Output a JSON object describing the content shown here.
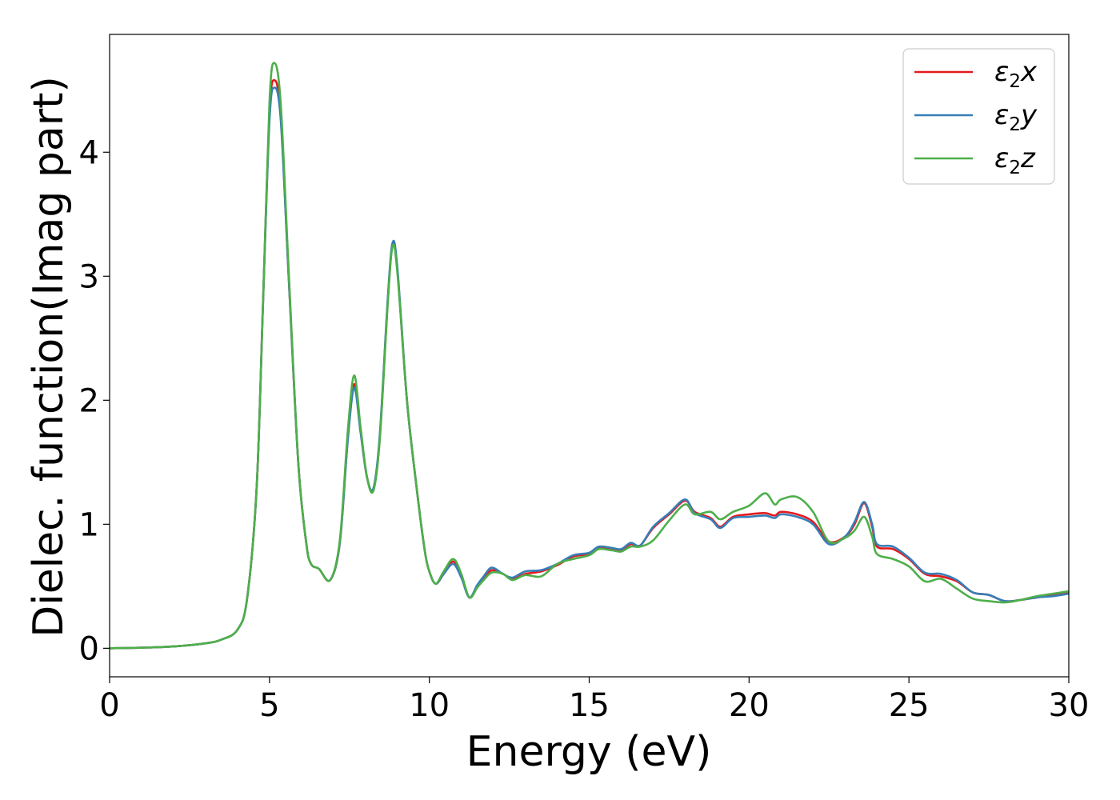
{
  "chart_data": {
    "type": "line",
    "xlabel": "Energy (eV)",
    "ylabel": "Dielec. function(Imag part)",
    "xlim": [
      0,
      30
    ],
    "ylim": [
      -0.23,
      4.95
    ],
    "xticks": [
      0,
      5,
      10,
      15,
      20,
      25,
      30
    ],
    "yticks": [
      0,
      1,
      2,
      3,
      4
    ],
    "grid": false,
    "legend_position": "top-right",
    "series": [
      {
        "name": "ε2x",
        "legend": {
          "base": "ε",
          "sub": "2",
          "axis": "x"
        },
        "color": "#e41a1c",
        "points": [
          [
            0,
            0
          ],
          [
            1,
            0.005
          ],
          [
            2,
            0.015
          ],
          [
            3,
            0.04
          ],
          [
            3.5,
            0.07
          ],
          [
            4,
            0.15
          ],
          [
            4.3,
            0.4
          ],
          [
            4.6,
            1.3
          ],
          [
            4.8,
            2.8
          ],
          [
            5.0,
            4.3
          ],
          [
            5.15,
            4.58
          ],
          [
            5.35,
            4.3
          ],
          [
            5.6,
            3.0
          ],
          [
            5.9,
            1.5
          ],
          [
            6.15,
            0.85
          ],
          [
            6.3,
            0.68
          ],
          [
            6.55,
            0.64
          ],
          [
            6.9,
            0.55
          ],
          [
            7.2,
            0.85
          ],
          [
            7.45,
            1.7
          ],
          [
            7.65,
            2.13
          ],
          [
            7.85,
            1.75
          ],
          [
            8.05,
            1.38
          ],
          [
            8.25,
            1.28
          ],
          [
            8.45,
            1.7
          ],
          [
            8.7,
            2.8
          ],
          [
            8.85,
            3.25
          ],
          [
            9.0,
            3.05
          ],
          [
            9.3,
            2.0
          ],
          [
            9.6,
            1.3
          ],
          [
            9.85,
            0.8
          ],
          [
            10.0,
            0.62
          ],
          [
            10.2,
            0.52
          ],
          [
            10.45,
            0.6
          ],
          [
            10.75,
            0.7
          ],
          [
            11.0,
            0.58
          ],
          [
            11.25,
            0.41
          ],
          [
            11.5,
            0.5
          ],
          [
            11.7,
            0.56
          ],
          [
            11.95,
            0.63
          ],
          [
            12.3,
            0.6
          ],
          [
            12.6,
            0.56
          ],
          [
            13.0,
            0.6
          ],
          [
            13.5,
            0.62
          ],
          [
            14.0,
            0.67
          ],
          [
            14.5,
            0.74
          ],
          [
            15.0,
            0.76
          ],
          [
            15.3,
            0.81
          ],
          [
            15.7,
            0.8
          ],
          [
            16.0,
            0.79
          ],
          [
            16.3,
            0.84
          ],
          [
            16.6,
            0.83
          ],
          [
            17.0,
            0.97
          ],
          [
            17.5,
            1.08
          ],
          [
            18.0,
            1.19
          ],
          [
            18.3,
            1.1
          ],
          [
            18.8,
            1.05
          ],
          [
            19.1,
            0.98
          ],
          [
            19.5,
            1.06
          ],
          [
            20.0,
            1.08
          ],
          [
            20.5,
            1.09
          ],
          [
            20.8,
            1.07
          ],
          [
            21.0,
            1.1
          ],
          [
            21.5,
            1.08
          ],
          [
            22.0,
            1.02
          ],
          [
            22.5,
            0.86
          ],
          [
            23.0,
            0.9
          ],
          [
            23.3,
            1.0
          ],
          [
            23.6,
            1.17
          ],
          [
            23.85,
            0.98
          ],
          [
            24.0,
            0.82
          ],
          [
            24.5,
            0.8
          ],
          [
            25.0,
            0.72
          ],
          [
            25.5,
            0.6
          ],
          [
            26.0,
            0.58
          ],
          [
            26.5,
            0.54
          ],
          [
            27.0,
            0.45
          ],
          [
            27.5,
            0.43
          ],
          [
            28.0,
            0.38
          ],
          [
            28.5,
            0.39
          ],
          [
            29.0,
            0.41
          ],
          [
            29.5,
            0.43
          ],
          [
            30.0,
            0.45
          ]
        ]
      },
      {
        "name": "ε2y",
        "legend": {
          "base": "ε",
          "sub": "2",
          "axis": "y"
        },
        "color": "#377eb8",
        "points": [
          [
            0,
            0
          ],
          [
            1,
            0.005
          ],
          [
            2,
            0.015
          ],
          [
            3,
            0.04
          ],
          [
            3.5,
            0.07
          ],
          [
            4,
            0.15
          ],
          [
            4.3,
            0.4
          ],
          [
            4.6,
            1.3
          ],
          [
            4.8,
            2.8
          ],
          [
            5.0,
            4.25
          ],
          [
            5.15,
            4.52
          ],
          [
            5.35,
            4.27
          ],
          [
            5.6,
            3.0
          ],
          [
            5.9,
            1.5
          ],
          [
            6.15,
            0.85
          ],
          [
            6.3,
            0.68
          ],
          [
            6.55,
            0.64
          ],
          [
            6.9,
            0.55
          ],
          [
            7.2,
            0.85
          ],
          [
            7.45,
            1.68
          ],
          [
            7.65,
            2.1
          ],
          [
            7.85,
            1.74
          ],
          [
            8.05,
            1.38
          ],
          [
            8.25,
            1.29
          ],
          [
            8.45,
            1.72
          ],
          [
            8.7,
            2.82
          ],
          [
            8.85,
            3.27
          ],
          [
            9.0,
            3.07
          ],
          [
            9.3,
            2.0
          ],
          [
            9.6,
            1.3
          ],
          [
            9.85,
            0.8
          ],
          [
            10.0,
            0.62
          ],
          [
            10.2,
            0.52
          ],
          [
            10.45,
            0.6
          ],
          [
            10.75,
            0.68
          ],
          [
            11.0,
            0.57
          ],
          [
            11.25,
            0.41
          ],
          [
            11.5,
            0.51
          ],
          [
            11.7,
            0.58
          ],
          [
            11.95,
            0.65
          ],
          [
            12.3,
            0.6
          ],
          [
            12.6,
            0.57
          ],
          [
            13.0,
            0.62
          ],
          [
            13.5,
            0.63
          ],
          [
            14.0,
            0.68
          ],
          [
            14.5,
            0.75
          ],
          [
            15.0,
            0.77
          ],
          [
            15.3,
            0.82
          ],
          [
            15.7,
            0.81
          ],
          [
            16.0,
            0.8
          ],
          [
            16.3,
            0.85
          ],
          [
            16.6,
            0.83
          ],
          [
            17.0,
            0.98
          ],
          [
            17.5,
            1.09
          ],
          [
            18.0,
            1.2
          ],
          [
            18.3,
            1.09
          ],
          [
            18.8,
            1.04
          ],
          [
            19.1,
            0.97
          ],
          [
            19.5,
            1.05
          ],
          [
            20.0,
            1.06
          ],
          [
            20.5,
            1.07
          ],
          [
            20.8,
            1.05
          ],
          [
            21.0,
            1.08
          ],
          [
            21.5,
            1.06
          ],
          [
            22.0,
            1.0
          ],
          [
            22.5,
            0.84
          ],
          [
            23.0,
            0.9
          ],
          [
            23.3,
            1.02
          ],
          [
            23.6,
            1.18
          ],
          [
            23.85,
            1.0
          ],
          [
            24.0,
            0.84
          ],
          [
            24.5,
            0.82
          ],
          [
            25.0,
            0.73
          ],
          [
            25.5,
            0.61
          ],
          [
            26.0,
            0.6
          ],
          [
            26.5,
            0.55
          ],
          [
            27.0,
            0.45
          ],
          [
            27.5,
            0.43
          ],
          [
            28.0,
            0.38
          ],
          [
            28.5,
            0.39
          ],
          [
            29.0,
            0.41
          ],
          [
            29.5,
            0.42
          ],
          [
            30.0,
            0.44
          ]
        ]
      },
      {
        "name": "ε2z",
        "legend": {
          "base": "ε",
          "sub": "2",
          "axis": "z"
        },
        "color": "#4daf4a",
        "points": [
          [
            0,
            0
          ],
          [
            1,
            0.005
          ],
          [
            2,
            0.015
          ],
          [
            3,
            0.04
          ],
          [
            3.5,
            0.07
          ],
          [
            4,
            0.15
          ],
          [
            4.3,
            0.4
          ],
          [
            4.6,
            1.3
          ],
          [
            4.8,
            2.8
          ],
          [
            5.0,
            4.4
          ],
          [
            5.15,
            4.72
          ],
          [
            5.35,
            4.4
          ],
          [
            5.6,
            3.05
          ],
          [
            5.9,
            1.5
          ],
          [
            6.15,
            0.85
          ],
          [
            6.3,
            0.68
          ],
          [
            6.55,
            0.64
          ],
          [
            6.9,
            0.55
          ],
          [
            7.2,
            0.87
          ],
          [
            7.45,
            1.75
          ],
          [
            7.65,
            2.2
          ],
          [
            7.85,
            1.78
          ],
          [
            8.05,
            1.38
          ],
          [
            8.25,
            1.27
          ],
          [
            8.45,
            1.68
          ],
          [
            8.7,
            2.78
          ],
          [
            8.85,
            3.24
          ],
          [
            9.0,
            3.03
          ],
          [
            9.3,
            2.0
          ],
          [
            9.6,
            1.3
          ],
          [
            9.85,
            0.8
          ],
          [
            10.0,
            0.62
          ],
          [
            10.2,
            0.52
          ],
          [
            10.45,
            0.62
          ],
          [
            10.75,
            0.72
          ],
          [
            11.0,
            0.6
          ],
          [
            11.25,
            0.41
          ],
          [
            11.5,
            0.49
          ],
          [
            11.7,
            0.55
          ],
          [
            11.95,
            0.61
          ],
          [
            12.3,
            0.6
          ],
          [
            12.6,
            0.55
          ],
          [
            13.0,
            0.59
          ],
          [
            13.5,
            0.58
          ],
          [
            14.0,
            0.68
          ],
          [
            14.5,
            0.72
          ],
          [
            15.0,
            0.75
          ],
          [
            15.3,
            0.8
          ],
          [
            15.7,
            0.79
          ],
          [
            16.0,
            0.78
          ],
          [
            16.3,
            0.82
          ],
          [
            16.6,
            0.82
          ],
          [
            17.0,
            0.87
          ],
          [
            17.5,
            1.03
          ],
          [
            18.0,
            1.16
          ],
          [
            18.3,
            1.08
          ],
          [
            18.8,
            1.1
          ],
          [
            19.1,
            1.04
          ],
          [
            19.5,
            1.1
          ],
          [
            20.0,
            1.15
          ],
          [
            20.5,
            1.25
          ],
          [
            20.8,
            1.16
          ],
          [
            21.0,
            1.2
          ],
          [
            21.5,
            1.22
          ],
          [
            22.0,
            1.1
          ],
          [
            22.5,
            0.86
          ],
          [
            23.0,
            0.89
          ],
          [
            23.3,
            0.95
          ],
          [
            23.6,
            1.06
          ],
          [
            23.85,
            0.9
          ],
          [
            24.0,
            0.76
          ],
          [
            24.5,
            0.72
          ],
          [
            25.0,
            0.66
          ],
          [
            25.5,
            0.54
          ],
          [
            26.0,
            0.56
          ],
          [
            26.5,
            0.48
          ],
          [
            27.0,
            0.4
          ],
          [
            27.5,
            0.38
          ],
          [
            28.0,
            0.37
          ],
          [
            28.5,
            0.39
          ],
          [
            29.0,
            0.42
          ],
          [
            29.5,
            0.44
          ],
          [
            30.0,
            0.46
          ]
        ]
      }
    ]
  }
}
